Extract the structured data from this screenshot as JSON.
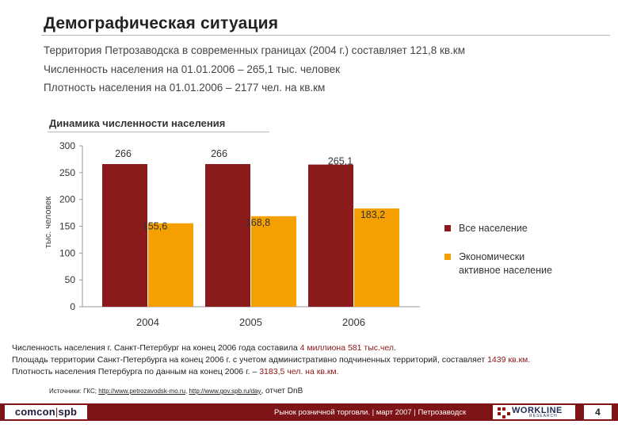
{
  "title": "Демографическая ситуация",
  "intro": [
    "Территория Петрозаводска в современных границах (2004 г.) составляет 121,8 кв.км",
    "Численность населения на 01.01.2006 – 265,1 тыс. человек",
    "Плотность населения на 01.01.2006 – 2177 чел. на кв.км"
  ],
  "chart_data": {
    "type": "bar",
    "title": "Динамика численности населения",
    "ylabel": "тыс. человек",
    "xlabel": "",
    "ylim": [
      0,
      300
    ],
    "yticks": [
      0,
      50,
      100,
      150,
      200,
      250,
      300
    ],
    "categories": [
      "2004",
      "2005",
      "2006"
    ],
    "series": [
      {
        "name": "Все население",
        "values": [
          266,
          266,
          265.1
        ],
        "labels": [
          "266",
          "266",
          "265,1"
        ],
        "color": "#8b1a1a"
      },
      {
        "name": "Экономически активное население",
        "values": [
          155.6,
          168.8,
          183.2
        ],
        "labels": [
          "155,6",
          "168,8",
          "183,2"
        ],
        "color": "#f5a000"
      }
    ],
    "legend": [
      "Все население",
      "Экономически активное население"
    ],
    "legend_position": "right"
  },
  "notes": {
    "line1_pre": "Численность населения г. Санкт-Петербург на конец 2006 года составила ",
    "line1_hl": "4 миллиона 581 тыс.чел.",
    "line2_pre": "Площадь территории Санкт-Петербурга на конец 2006 г. с учетом административно подчиненных территорий, составляет ",
    "line2_hl": "1439 кв.км.",
    "line3_pre": "Плотность населения Петербурга по данным на конец 2006 г. – ",
    "line3_hl": "3183,5 чел. на кв.км."
  },
  "sources": {
    "prefix": "Источники: ГКС; ",
    "link1": "http://www.petrozavodsk-mo.ru",
    "sep": ", ",
    "link2": "http://www.gov.spb.ru/day",
    "suffix": ", отчет ",
    "suffix2": "DnB"
  },
  "footer": {
    "logo_left_a": "comcon",
    "logo_left_sep": "|",
    "logo_left_b": "spb",
    "center": "Рынок розничной торговли. | март 2007 | Петрозаводск",
    "logo_right": "WORKLINE",
    "logo_right_sub": "RESEARCH",
    "page": "4"
  },
  "colors": {
    "accent": "#7e1418",
    "bar_total": "#8b1a1a",
    "bar_active": "#f5a000"
  }
}
